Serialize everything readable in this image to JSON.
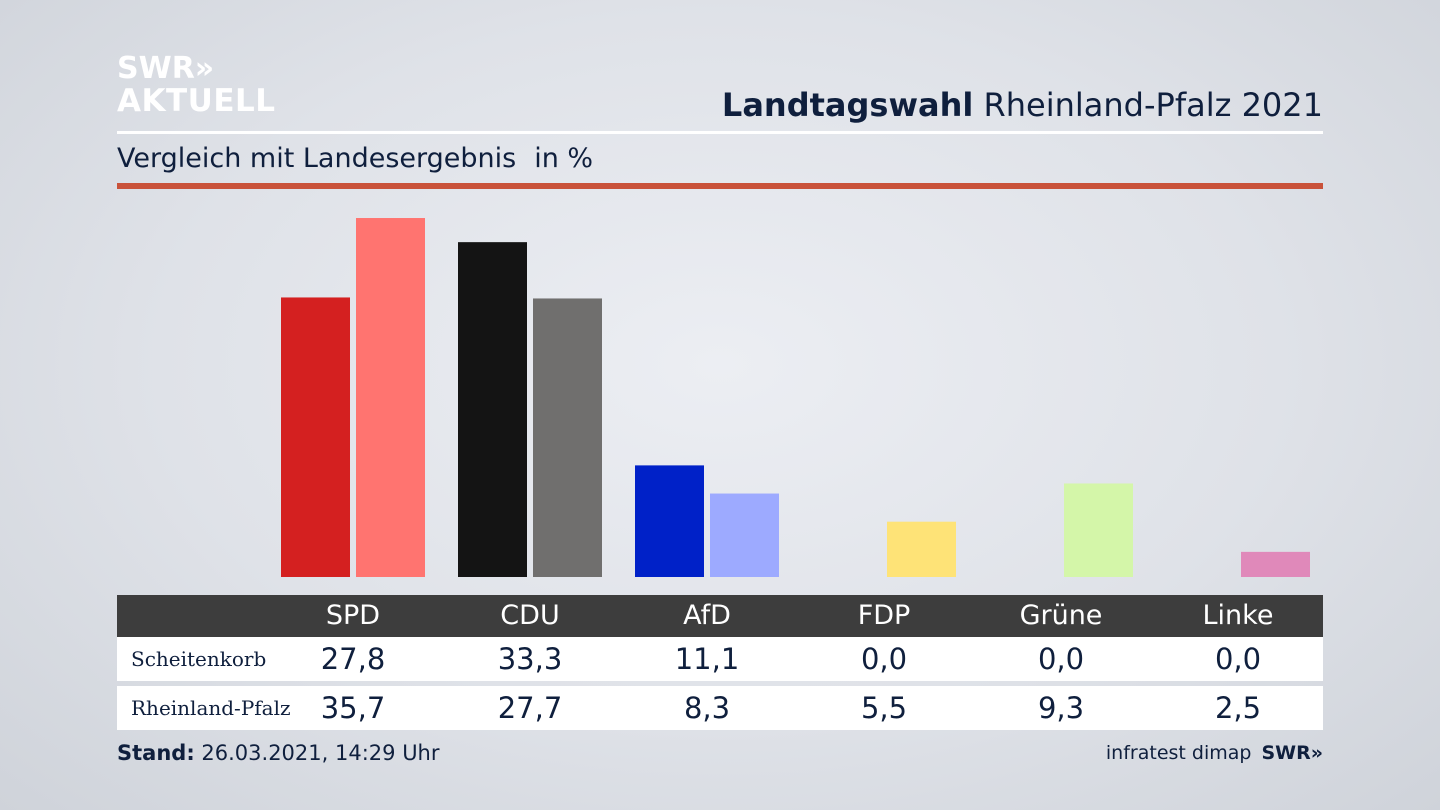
{
  "logo": {
    "line1": "SWR»",
    "line2": "AKTUELL"
  },
  "header": {
    "title_bold": "Landtagswahl",
    "title_rest": "Rheinland-Pfalz 2021"
  },
  "subtitle": {
    "text": "Vergleich mit Landesergebnis",
    "unit": "in %"
  },
  "chart_data": {
    "type": "bar",
    "categories": [
      "SPD",
      "CDU",
      "AfD",
      "FDP",
      "Grüne",
      "Linke"
    ],
    "series": [
      {
        "name": "Scheitenkorb",
        "values": [
          27.8,
          33.3,
          11.1,
          0.0,
          0.0,
          0.0
        ],
        "colors": [
          "#d42020",
          "#141414",
          "#0021c8",
          "#fce06a",
          "#8fd84f",
          "#c2307a"
        ]
      },
      {
        "name": "Rheinland-Pfalz",
        "values": [
          35.7,
          27.7,
          8.3,
          5.5,
          9.3,
          2.5
        ],
        "colors": [
          "#ff7470",
          "#706f6e",
          "#9daaff",
          "#fee377",
          "#d4f6a9",
          "#e089ba"
        ]
      }
    ],
    "ylim": [
      0,
      36
    ],
    "grid": false,
    "legend": "table-below"
  },
  "footer": {
    "stand_label": "Stand:",
    "stand_value": "26.03.2021, 14:29 Uhr",
    "source": "infratest dimap",
    "brand": "SWR»"
  }
}
